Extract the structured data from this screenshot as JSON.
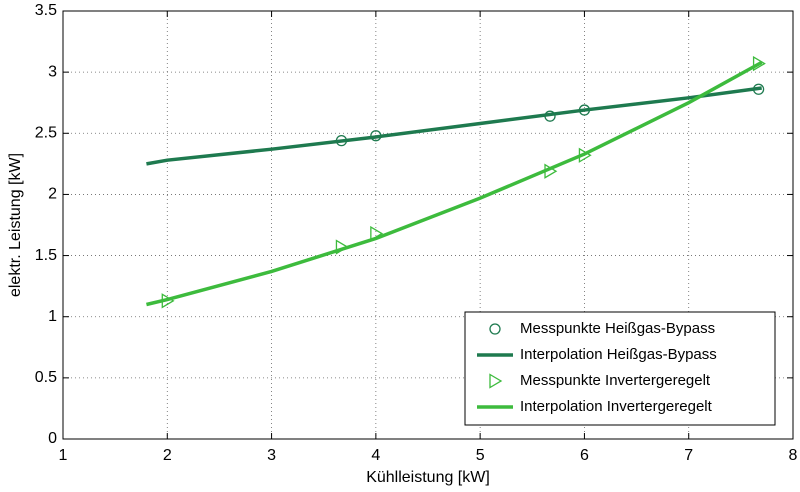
{
  "chart_data": {
    "type": "line",
    "xlabel": "Kühlleistung [kW]",
    "ylabel": "elektr. Leistung [kW]",
    "xlim": [
      1,
      8
    ],
    "ylim": [
      0,
      3.5
    ],
    "xticks": [
      1,
      2,
      3,
      4,
      5,
      6,
      7,
      8
    ],
    "yticks": [
      0,
      0.5,
      1,
      1.5,
      2,
      2.5,
      3,
      3.5
    ],
    "grid": true,
    "legend_position": "lower right",
    "series": [
      {
        "name": "Messpunkte Heißgas-Bypass",
        "color": "#1e7a4f",
        "style": "markers",
        "marker": "circle",
        "x": [
          3.67,
          4.0,
          5.67,
          6.0,
          7.67
        ],
        "values": [
          2.44,
          2.48,
          2.64,
          2.69,
          2.86
        ]
      },
      {
        "name": "Interpolation Heißgas-Bypass",
        "color": "#1e7a4f",
        "style": "line",
        "x": [
          1.8,
          2,
          3,
          4,
          5,
          6,
          7,
          7.7
        ],
        "values": [
          2.25,
          2.28,
          2.37,
          2.47,
          2.58,
          2.69,
          2.79,
          2.87
        ]
      },
      {
        "name": "Messpunkte Invertergeregelt",
        "color": "#3dbb3d",
        "style": "markers",
        "marker": "triangle-right",
        "x": [
          2.0,
          3.67,
          4.0,
          5.67,
          6.0,
          7.67
        ],
        "values": [
          1.13,
          1.57,
          1.68,
          2.19,
          2.32,
          3.07
        ]
      },
      {
        "name": "Interpolation Invertergeregelt",
        "color": "#3dbb3d",
        "style": "line",
        "x": [
          1.8,
          2,
          3,
          4,
          5,
          6,
          7,
          7.7
        ],
        "values": [
          1.1,
          1.14,
          1.37,
          1.64,
          1.97,
          2.33,
          2.75,
          3.08
        ]
      }
    ]
  }
}
